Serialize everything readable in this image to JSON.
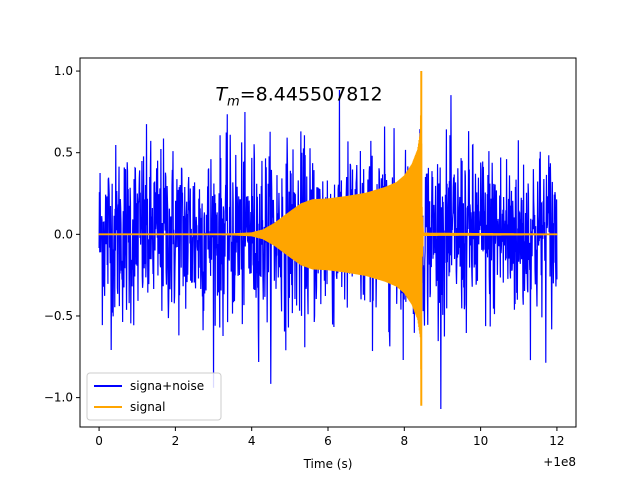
{
  "chart_data": {
    "type": "line",
    "xlabel": "Time (s)",
    "ylabel": "",
    "xlim": [
      -0.5,
      12.5
    ],
    "ylim": [
      -1.18,
      1.08
    ],
    "x_offset_label": "+1e8",
    "xticks": [
      0,
      2,
      4,
      6,
      8,
      10,
      12
    ],
    "xtick_labels": [
      "0",
      "2",
      "4",
      "6",
      "8",
      "10",
      "12"
    ],
    "yticks": [
      -1.0,
      -0.5,
      0.0,
      0.5,
      1.0
    ],
    "ytick_labels": [
      "−1.0",
      "−0.5",
      "0.0",
      "0.5",
      "1.0"
    ],
    "grid": false,
    "legend_position": "lower-left",
    "annotation": {
      "prefix": "T",
      "subscript": "m",
      "suffix": "=8.445507812",
      "x": 3.05,
      "y": 0.82
    },
    "series": [
      {
        "name": "signa+noise",
        "color": "#0000ff",
        "x_range": [
          0,
          12
        ],
        "typical_amplitude": 0.45,
        "max_positive": 1.0,
        "max_negative": -1.07
      },
      {
        "name": "signal",
        "color": "#ffa500",
        "x_range": [
          0,
          12
        ],
        "envelope_x": [
          0,
          3.0,
          3.5,
          4.0,
          4.3,
          4.6,
          5.0,
          5.3,
          5.6,
          6.0,
          6.5,
          7.0,
          7.5,
          7.8,
          8.0,
          8.2,
          8.35,
          8.42,
          8.445,
          8.46,
          8.5,
          12
        ],
        "envelope_y": [
          0.005,
          0.005,
          0.006,
          0.012,
          0.03,
          0.07,
          0.14,
          0.19,
          0.215,
          0.22,
          0.235,
          0.255,
          0.29,
          0.32,
          0.36,
          0.43,
          0.52,
          0.63,
          1.0,
          0.2,
          0.01,
          0.005
        ],
        "peak_positive": 1.0,
        "peak_negative": -1.05
      }
    ]
  }
}
